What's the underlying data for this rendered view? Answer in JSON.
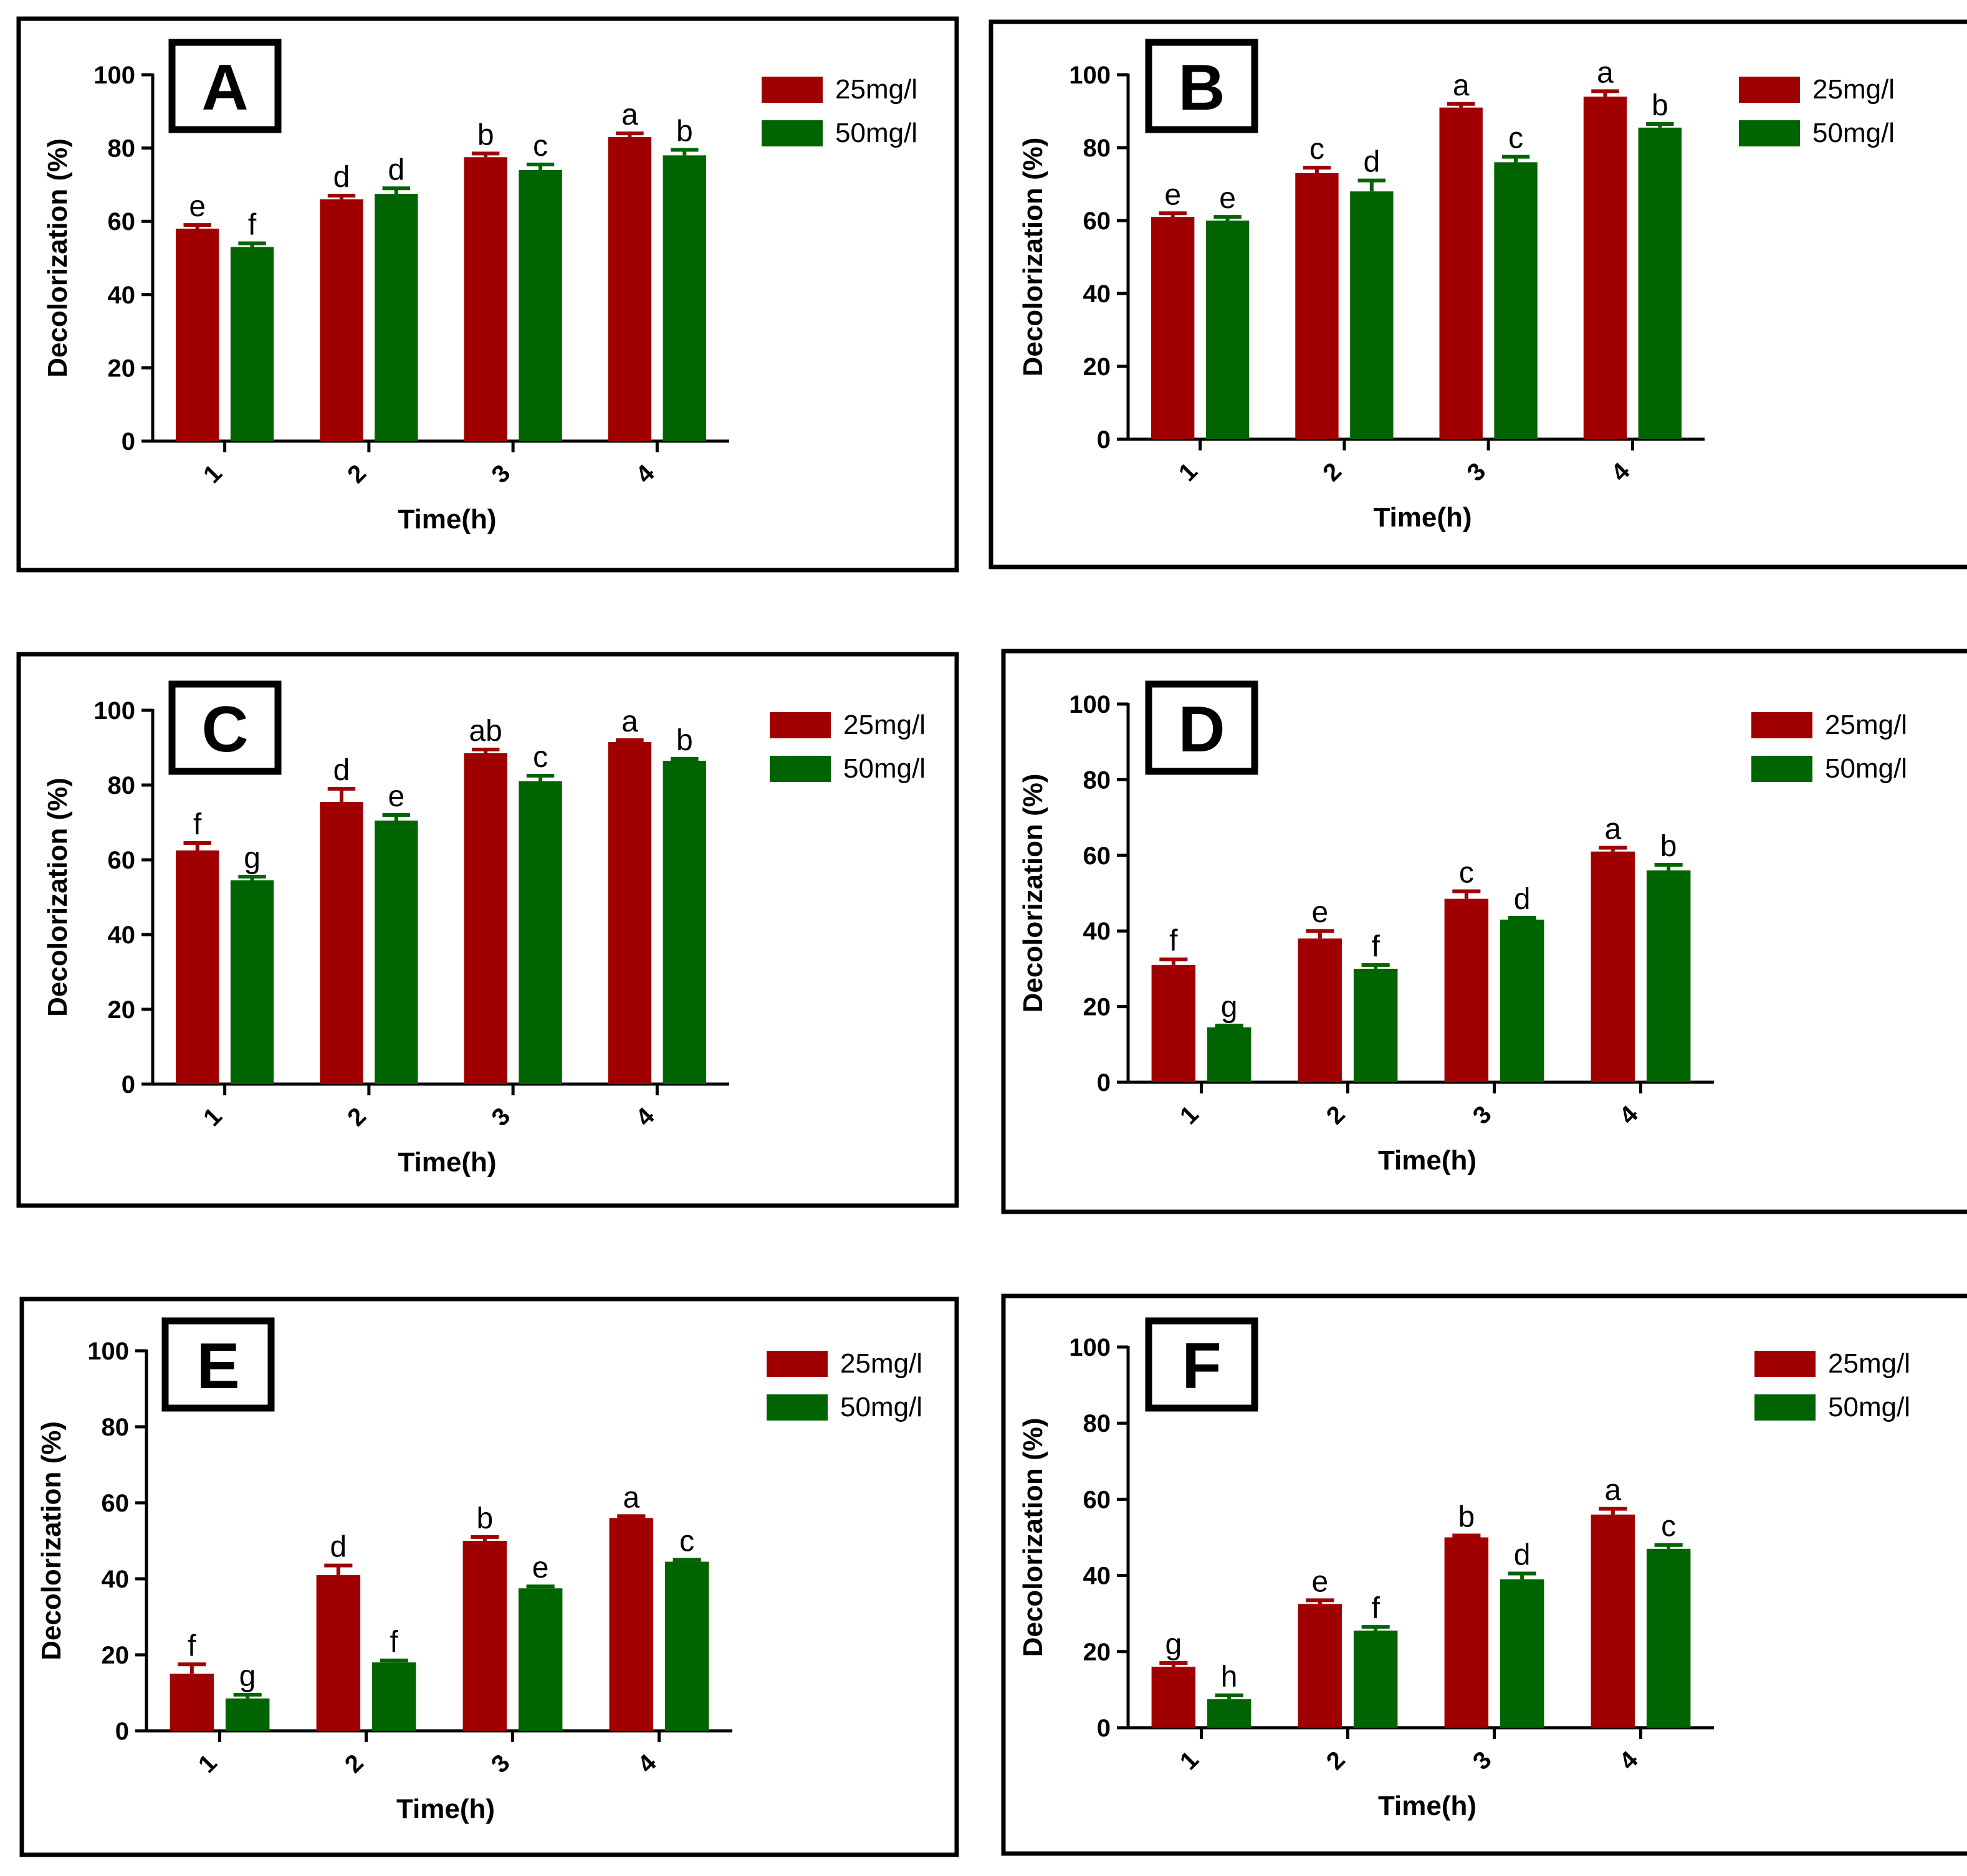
{
  "colors": {
    "series_25": "#a00000",
    "series_50": "#006400",
    "axis": "#000000",
    "frame": "#000000"
  },
  "chart_data": [
    {
      "type": "bar",
      "panel": "A",
      "categories": [
        "1",
        "2",
        "3",
        "4"
      ],
      "series": [
        {
          "name": "25mg/l",
          "values": [
            58,
            66,
            77.5,
            83
          ],
          "errors": [
            1,
            1,
            1,
            1
          ],
          "letters": [
            "e",
            "d",
            "b",
            "a"
          ]
        },
        {
          "name": "50mg/l",
          "values": [
            53,
            67.5,
            74,
            78
          ],
          "errors": [
            1,
            1.5,
            1.5,
            1.5
          ],
          "letters": [
            "f",
            "d",
            "c",
            "b"
          ]
        }
      ],
      "xlabel": "Time(h)",
      "ylabel": "Decolorization (%)",
      "ylim": [
        0,
        100
      ],
      "yticks": [
        0,
        20,
        40,
        60,
        80,
        100
      ],
      "legend": "top-right"
    },
    {
      "type": "bar",
      "panel": "B",
      "categories": [
        "1",
        "2",
        "3",
        "4"
      ],
      "series": [
        {
          "name": "25mg/l",
          "values": [
            61,
            73,
            91,
            94
          ],
          "errors": [
            1,
            1.5,
            1,
            1.5
          ],
          "letters": [
            "e",
            "c",
            "a",
            "a"
          ]
        },
        {
          "name": "50mg/l",
          "values": [
            60,
            68,
            76,
            85.5
          ],
          "errors": [
            1,
            3,
            1.5,
            1
          ],
          "letters": [
            "e",
            "d",
            "c",
            "b"
          ]
        }
      ],
      "xlabel": "Time(h)",
      "ylabel": "Decolorization (%)",
      "ylim": [
        0,
        100
      ],
      "yticks": [
        0,
        20,
        40,
        60,
        80,
        100
      ],
      "legend": "top-right"
    },
    {
      "type": "bar",
      "panel": "C",
      "categories": [
        "1",
        "2",
        "3",
        "4"
      ],
      "series": [
        {
          "name": "25mg/l",
          "values": [
            62.5,
            75.5,
            88.5,
            91.5
          ],
          "errors": [
            2,
            3.5,
            1,
            0.5
          ],
          "letters": [
            "f",
            "d",
            "ab",
            "a"
          ]
        },
        {
          "name": "50mg/l",
          "values": [
            54.5,
            70.5,
            81,
            86.5
          ],
          "errors": [
            1,
            1.5,
            1.5,
            0.5
          ],
          "letters": [
            "g",
            "e",
            "c",
            "b"
          ]
        }
      ],
      "xlabel": "Time(h)",
      "ylabel": "Decolorization (%)",
      "ylim": [
        0,
        100
      ],
      "yticks": [
        0,
        20,
        40,
        60,
        80,
        100
      ],
      "legend": "top-right"
    },
    {
      "type": "bar",
      "panel": "D",
      "categories": [
        "1",
        "2",
        "3",
        "4"
      ],
      "series": [
        {
          "name": "25mg/l",
          "values": [
            31,
            38,
            48.5,
            61
          ],
          "errors": [
            1.5,
            2,
            2,
            1
          ],
          "letters": [
            "f",
            "e",
            "c",
            "a"
          ]
        },
        {
          "name": "50mg/l",
          "values": [
            14.5,
            30,
            43,
            56
          ],
          "errors": [
            0.5,
            1,
            0.5,
            1.5
          ],
          "letters": [
            "g",
            "f",
            "d",
            "b"
          ]
        }
      ],
      "xlabel": "Time(h)",
      "ylabel": "Decolorization (%)",
      "ylim": [
        0,
        100
      ],
      "yticks": [
        0,
        20,
        40,
        60,
        80,
        100
      ],
      "legend": "top-right"
    },
    {
      "type": "bar",
      "panel": "E",
      "categories": [
        "1",
        "2",
        "3",
        "4"
      ],
      "series": [
        {
          "name": "25mg/l",
          "values": [
            15,
            41,
            50,
            56
          ],
          "errors": [
            2.5,
            2.5,
            1,
            0.5
          ],
          "letters": [
            "f",
            "d",
            "b",
            "a"
          ]
        },
        {
          "name": "50mg/l",
          "values": [
            8.5,
            18,
            37.5,
            44.5
          ],
          "errors": [
            1,
            0.5,
            0.5,
            0.5
          ],
          "letters": [
            "g",
            "f",
            "e",
            "c"
          ]
        }
      ],
      "xlabel": "Time(h)",
      "ylabel": "Decolorization (%)",
      "ylim": [
        0,
        100
      ],
      "yticks": [
        0,
        20,
        40,
        60,
        80,
        100
      ],
      "legend": "top-right"
    },
    {
      "type": "bar",
      "panel": "F",
      "categories": [
        "1",
        "2",
        "3",
        "4"
      ],
      "series": [
        {
          "name": "25mg/l",
          "values": [
            16,
            32.5,
            50,
            56
          ],
          "errors": [
            1,
            1,
            0.5,
            1.5
          ],
          "letters": [
            "g",
            "e",
            "b",
            "a"
          ]
        },
        {
          "name": "50mg/l",
          "values": [
            7.5,
            25.5,
            39,
            47
          ],
          "errors": [
            1,
            1,
            1.5,
            1
          ],
          "letters": [
            "h",
            "f",
            "d",
            "c"
          ]
        }
      ],
      "xlabel": "Time(h)",
      "ylabel": "Decolorization (%)",
      "ylim": [
        0,
        100
      ],
      "yticks": [
        0,
        20,
        40,
        60,
        80,
        100
      ],
      "legend": "top-right"
    }
  ]
}
